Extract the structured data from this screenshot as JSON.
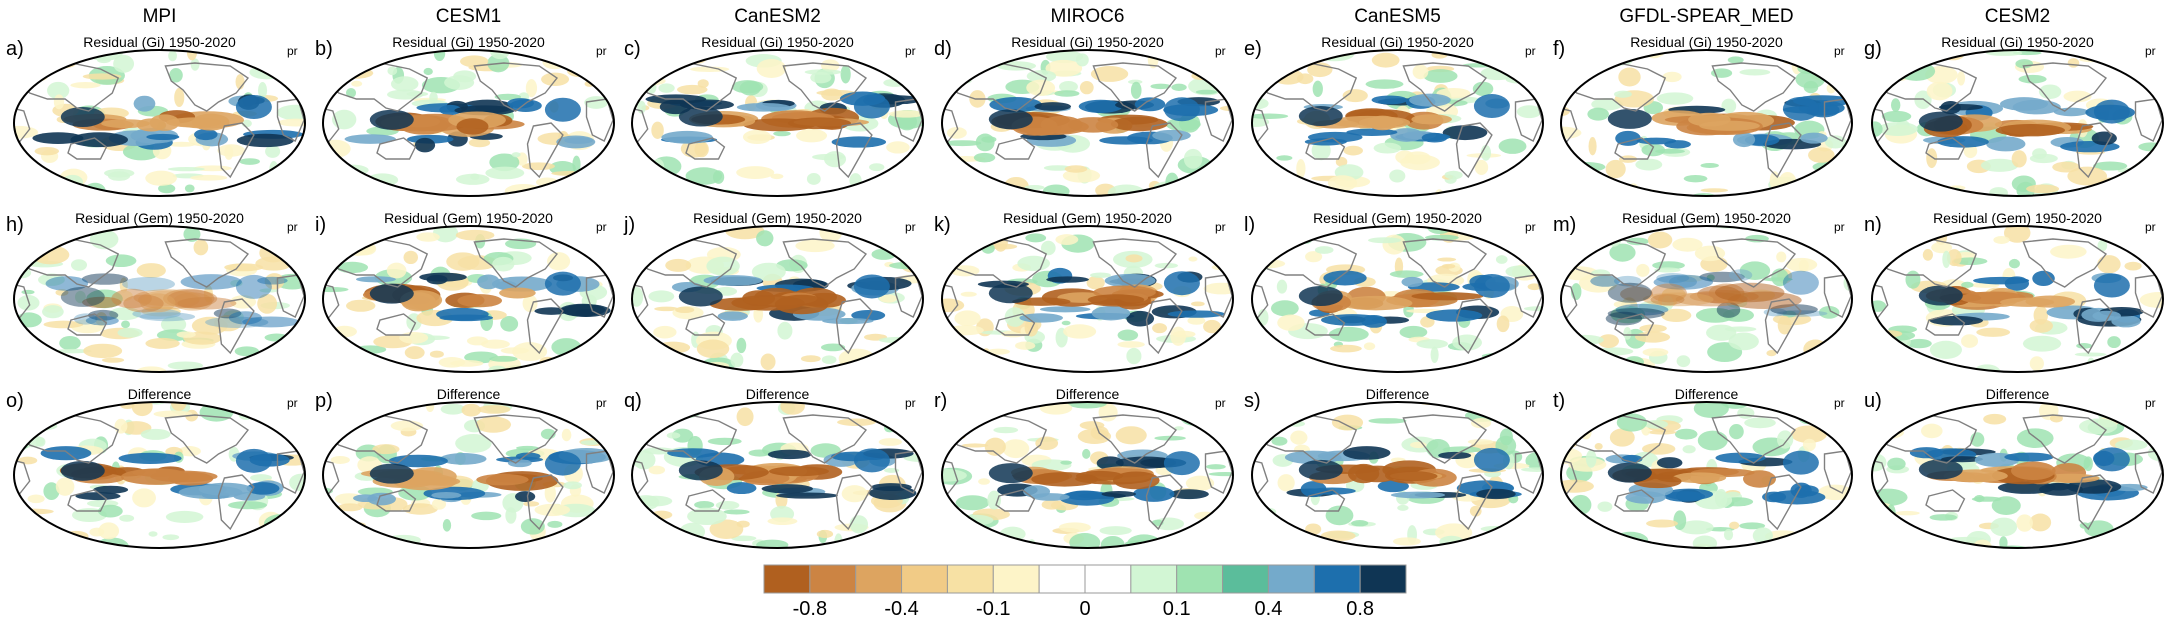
{
  "columns": [
    {
      "title": "MPI",
      "letters": [
        "a)",
        "h)",
        "o)"
      ]
    },
    {
      "title": "CESM1",
      "letters": [
        "b)",
        "i)",
        "p)"
      ]
    },
    {
      "title": "CanESM2",
      "letters": [
        "c)",
        "j)",
        "q)"
      ]
    },
    {
      "title": "MIROC6",
      "letters": [
        "d)",
        "k)",
        "r)"
      ]
    },
    {
      "title": "CanESM5",
      "letters": [
        "e)",
        "l)",
        "s)"
      ]
    },
    {
      "title": "GFDL-SPEAR_MED",
      "letters": [
        "f)",
        "m)",
        "t)"
      ]
    },
    {
      "title": "CESM2",
      "letters": [
        "g)",
        "n)",
        "u)"
      ]
    }
  ],
  "rows": [
    {
      "subtitle": "Residual (Gi) 1950-2020"
    },
    {
      "subtitle": "Residual (Gem) 1950-2020"
    },
    {
      "subtitle": "Difference"
    }
  ],
  "variable_label": "pr",
  "colorbar": {
    "colors": [
      "#b0601f",
      "#cc8443",
      "#dda460",
      "#f1cb86",
      "#f7e1a4",
      "#fdf4c8",
      "#ffffff",
      "#ffffff",
      "#d2f6d4",
      "#9fe3b1",
      "#5bbd9b",
      "#74aacb",
      "#1d6fad",
      "#0f3554"
    ],
    "labels": [
      "-0.8",
      "-0.4",
      "-0.1",
      "0",
      "0.1",
      "0.4",
      "0.8"
    ]
  }
}
